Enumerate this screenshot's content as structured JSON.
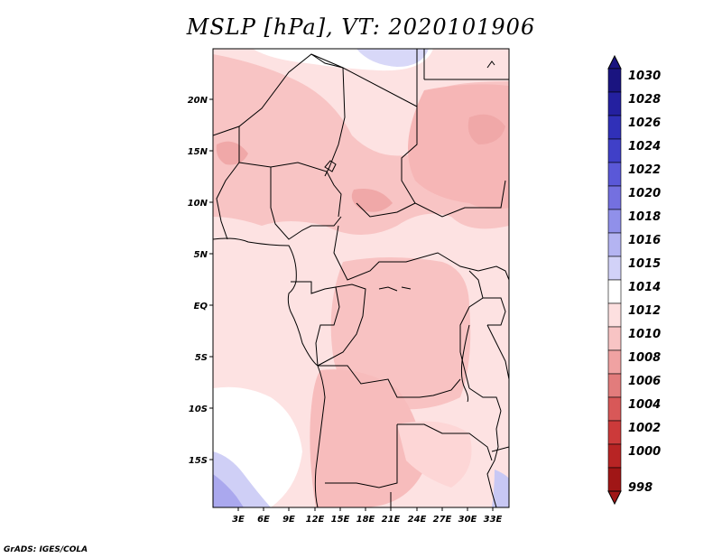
{
  "title": "MSLP [hPa], VT: 2020101906",
  "credit": "GrADS: IGES/COLA",
  "map": {
    "lat_labels": [
      "20N",
      "15N",
      "10N",
      "5N",
      "EQ",
      "5S",
      "10S",
      "15S"
    ],
    "lon_labels": [
      "3E",
      "6E",
      "9E",
      "12E",
      "15E",
      "18E",
      "21E",
      "24E",
      "27E",
      "30E",
      "33E"
    ]
  },
  "colorbar": {
    "levels": [
      "1030",
      "1028",
      "1026",
      "1024",
      "1022",
      "1020",
      "1018",
      "1016",
      "1015",
      "1014",
      "1012",
      "1010",
      "1008",
      "1006",
      "1004",
      "1002",
      "1000",
      "998"
    ],
    "colors": [
      "#1a1480",
      "#2420a0",
      "#3030b8",
      "#4040c8",
      "#5a58d8",
      "#7470e0",
      "#9090ea",
      "#b4b4f2",
      "#d2d2f8",
      "#ffffff",
      "#fde0e0",
      "#f8c4c4",
      "#f0a2a2",
      "#e27c7c",
      "#d85858",
      "#cc3a3a",
      "#b82424",
      "#a01616"
    ]
  }
}
